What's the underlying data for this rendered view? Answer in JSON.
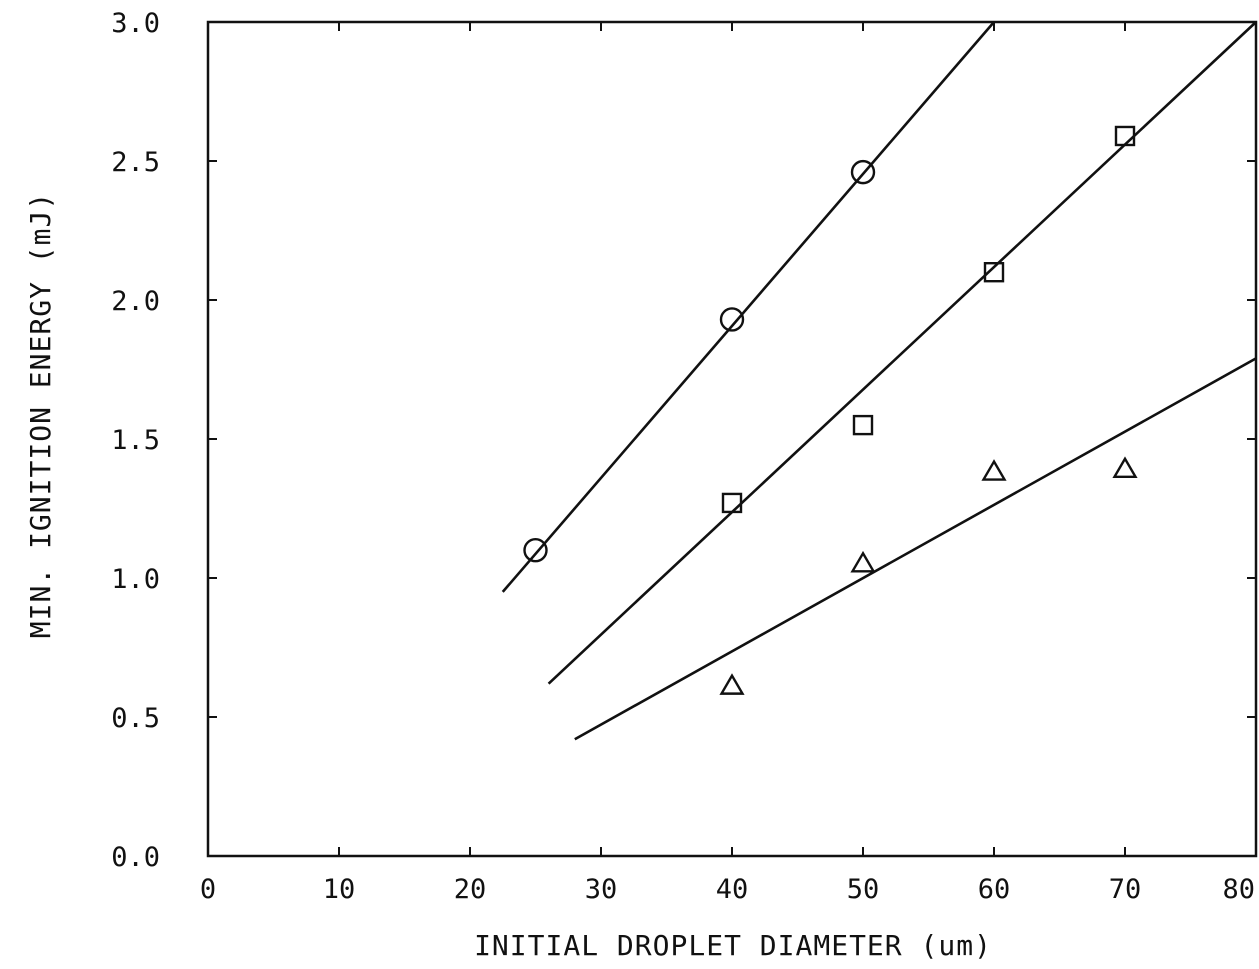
{
  "chart_data": {
    "type": "scatter",
    "title": "",
    "xlabel": "INITIAL DROPLET DIAMETER (um)",
    "ylabel": "MIN. IGNITION ENERGY (mJ)",
    "xlim": [
      0,
      80
    ],
    "ylim": [
      0.0,
      3.0
    ],
    "xticks": [
      0,
      10,
      20,
      30,
      40,
      50,
      60,
      70,
      80
    ],
    "yticks": [
      0.0,
      0.5,
      1.0,
      1.5,
      2.0,
      2.5,
      3.0
    ],
    "xtick_labels": [
      "0",
      "10",
      "20",
      "30",
      "40",
      "50",
      "60",
      "70",
      "80"
    ],
    "ytick_labels": [
      "0.0",
      "0.5",
      "1.0",
      "1.5",
      "2.0",
      "2.5",
      "3.0"
    ],
    "grid": false,
    "legend": "none",
    "series": [
      {
        "marker": "circle",
        "points": [
          [
            25,
            1.1
          ],
          [
            40,
            1.93
          ],
          [
            50,
            2.46
          ]
        ],
        "fit_line": [
          [
            22.5,
            0.95
          ],
          [
            60,
            3.0
          ]
        ]
      },
      {
        "marker": "square",
        "points": [
          [
            40,
            1.27
          ],
          [
            50,
            1.55
          ],
          [
            60,
            2.1
          ],
          [
            70,
            2.59
          ]
        ],
        "fit_line": [
          [
            26,
            0.62
          ],
          [
            80,
            3.0
          ]
        ]
      },
      {
        "marker": "triangle",
        "points": [
          [
            40,
            0.61
          ],
          [
            50,
            1.05
          ],
          [
            60,
            1.38
          ],
          [
            70,
            1.39
          ]
        ],
        "fit_line": [
          [
            28,
            0.42
          ],
          [
            80,
            1.79
          ]
        ]
      }
    ]
  }
}
